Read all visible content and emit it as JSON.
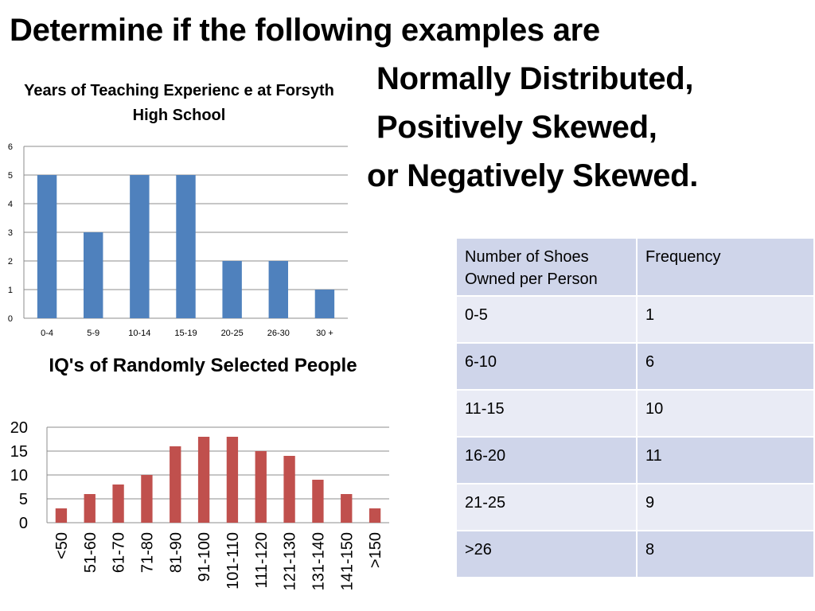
{
  "heading": {
    "line1": "Determine if the following examples are",
    "line2": "Normally Distributed,",
    "line3": "Positively Skewed,",
    "line4": "or Negatively Skewed."
  },
  "chart_data": [
    {
      "type": "bar",
      "title": "Years of Teaching Experienc e at Forsyth High School",
      "categories": [
        "0-4",
        "5-9",
        "10-14",
        "15-19",
        "20-25",
        "26-30",
        "30 +"
      ],
      "values": [
        5,
        3,
        5,
        5,
        2,
        2,
        1
      ],
      "ylim": [
        0,
        6
      ],
      "yticks": [
        0,
        1,
        2,
        3,
        4,
        5,
        6
      ],
      "grid": true,
      "color": "#4f81bd"
    },
    {
      "type": "bar",
      "title": "IQ's of Randomly Selected People",
      "categories": [
        "<50",
        "51-60",
        "61-70",
        "71-80",
        "81-90",
        "91-100",
        "101-110",
        "111-120",
        "121-130",
        "131-140",
        "141-150",
        ">150"
      ],
      "values": [
        3,
        6,
        8,
        10,
        16,
        18,
        18,
        15,
        14,
        9,
        6,
        3
      ],
      "ylim": [
        0,
        20
      ],
      "yticks": [
        0,
        5,
        10,
        15,
        20
      ],
      "grid": true,
      "color": "#c0504d"
    }
  ],
  "table": {
    "headers": [
      "Number of Shoes Owned per Person",
      "Frequency"
    ],
    "rows": [
      [
        "0-5",
        "1"
      ],
      [
        "6-10",
        "6"
      ],
      [
        "11-15",
        "10"
      ],
      [
        "16-20",
        "11"
      ],
      [
        "21-25",
        "9"
      ],
      [
        ">26",
        "8"
      ]
    ]
  }
}
